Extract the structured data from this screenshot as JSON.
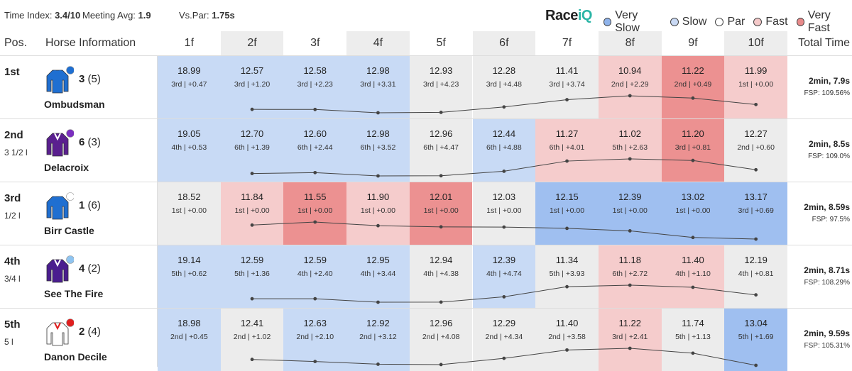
{
  "top": {
    "time_index_label": "Time Index:",
    "time_index": "3.4/10",
    "meeting_avg_label": "Meeting Avg:",
    "meeting_avg": "1.9",
    "vs_par_label": "Vs.Par:",
    "vs_par": "1.75s"
  },
  "brand": {
    "logo_main": "Race",
    "logo_accent": "iQ"
  },
  "legend": [
    {
      "label": "Very Slow",
      "color": "#8fb3ea"
    },
    {
      "label": "Slow",
      "color": "#c9d9f4"
    },
    {
      "label": "Par",
      "color": "#ffffff"
    },
    {
      "label": "Fast",
      "color": "#f4c9c9"
    },
    {
      "label": "Very Fast",
      "color": "#e88a8a"
    }
  ],
  "header": {
    "pos": "Pos.",
    "horse": "Horse Information",
    "total": "Total Time",
    "furlongs": [
      "1f",
      "2f",
      "3f",
      "4f",
      "5f",
      "6f",
      "7f",
      "8f",
      "9f",
      "10f"
    ]
  },
  "colors": {
    "very_slow": "#9fbff0",
    "slow": "#c8daf5",
    "par": "#ececec",
    "fast": "#f5cccc",
    "very_fast": "#ec9191"
  },
  "rows": [
    {
      "pos": "1st",
      "distance": "",
      "number": "3",
      "draw": "(5)",
      "name": "Ombudsman",
      "silks": {
        "body": "#1f6fd1",
        "cap": "#1f6fd1",
        "trim": "#1f6fd1"
      },
      "times": [
        "18.99",
        "12.57",
        "12.58",
        "12.98",
        "12.93",
        "12.28",
        "11.41",
        "10.94",
        "11.22",
        "11.99"
      ],
      "subs": [
        "3rd | +0.47",
        "3rd | +1.20",
        "3rd | +2.23",
        "3rd | +3.31",
        "3rd | +4.23",
        "3rd | +4.48",
        "3rd | +3.74",
        "2nd | +2.29",
        "2nd | +0.49",
        "1st | +0.00"
      ],
      "bands": [
        "slow",
        "slow",
        "slow",
        "slow",
        "par",
        "par",
        "par",
        "fast",
        "very_fast",
        "fast"
      ],
      "total": "2min, 7.9s",
      "fsp": "FSP: 109.56%"
    },
    {
      "pos": "2nd",
      "distance": "3 1/2 l",
      "number": "6",
      "draw": "(3)",
      "name": "Delacroix",
      "silks": {
        "body": "#5a1f8f",
        "cap": "#7b2fbf",
        "trim": "#ffffff"
      },
      "times": [
        "19.05",
        "12.70",
        "12.60",
        "12.98",
        "12.96",
        "12.44",
        "11.27",
        "11.02",
        "11.20",
        "12.27"
      ],
      "subs": [
        "4th | +0.53",
        "6th | +1.39",
        "6th | +2.44",
        "6th | +3.52",
        "6th | +4.47",
        "6th | +4.88",
        "6th | +4.01",
        "5th | +2.63",
        "3rd | +0.81",
        "2nd | +0.60"
      ],
      "bands": [
        "slow",
        "slow",
        "slow",
        "slow",
        "par",
        "slow",
        "fast",
        "fast",
        "very_fast",
        "par"
      ],
      "total": "2min, 8.5s",
      "fsp": "FSP: 109.0%"
    },
    {
      "pos": "3rd",
      "distance": "1/2 l",
      "number": "1",
      "draw": "(6)",
      "name": "Birr Castle",
      "silks": {
        "body": "#1f6fd1",
        "cap": "#ffffff",
        "trim": "#1f6fd1"
      },
      "times": [
        "18.52",
        "11.84",
        "11.55",
        "11.90",
        "12.01",
        "12.03",
        "12.15",
        "12.39",
        "13.02",
        "13.17"
      ],
      "subs": [
        "1st | +0.00",
        "1st | +0.00",
        "1st | +0.00",
        "1st | +0.00",
        "1st | +0.00",
        "1st | +0.00",
        "1st | +0.00",
        "1st | +0.00",
        "1st | +0.00",
        "3rd | +0.69"
      ],
      "bands": [
        "par",
        "fast",
        "very_fast",
        "fast",
        "very_fast",
        "par",
        "very_slow",
        "very_slow",
        "very_slow",
        "very_slow"
      ],
      "total": "2min, 8.59s",
      "fsp": "FSP: 97.5%"
    },
    {
      "pos": "4th",
      "distance": "3/4 l",
      "number": "4",
      "draw": "(2)",
      "name": "See The Fire",
      "silks": {
        "body": "#4a1d8f",
        "cap": "#8fc4f0",
        "trim": "#ffffff"
      },
      "times": [
        "19.14",
        "12.59",
        "12.59",
        "12.95",
        "12.94",
        "12.39",
        "11.34",
        "11.18",
        "11.40",
        "12.19"
      ],
      "subs": [
        "5th | +0.62",
        "5th | +1.36",
        "4th | +2.40",
        "4th | +3.44",
        "4th | +4.38",
        "4th | +4.74",
        "5th | +3.93",
        "6th | +2.72",
        "4th | +1.10",
        "4th | +0.81"
      ],
      "bands": [
        "slow",
        "slow",
        "slow",
        "slow",
        "par",
        "slow",
        "par",
        "fast",
        "fast",
        "par"
      ],
      "total": "2min, 8.71s",
      "fsp": "FSP: 108.29%"
    },
    {
      "pos": "5th",
      "distance": "5 l",
      "number": "2",
      "draw": "(4)",
      "name": "Danon Decile",
      "silks": {
        "body": "#ffffff",
        "cap": "#e01f1f",
        "trim": "#e01f1f"
      },
      "times": [
        "18.98",
        "12.41",
        "12.63",
        "12.92",
        "12.96",
        "12.29",
        "11.40",
        "11.22",
        "11.74",
        "13.04"
      ],
      "subs": [
        "2nd | +0.45",
        "2nd | +1.02",
        "2nd | +2.10",
        "2nd | +3.12",
        "2nd | +4.08",
        "2nd | +4.34",
        "2nd | +3.58",
        "3rd | +2.41",
        "5th | +1.13",
        "5th | +1.69"
      ],
      "bands": [
        "slow",
        "par",
        "slow",
        "slow",
        "par",
        "par",
        "par",
        "fast",
        "par",
        "very_slow"
      ],
      "total": "2min, 9.59s",
      "fsp": "FSP: 105.31%"
    }
  ]
}
